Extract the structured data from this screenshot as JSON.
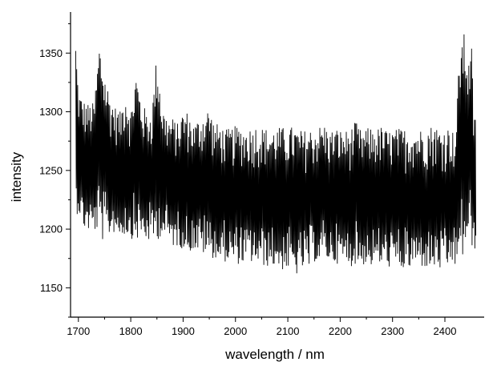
{
  "chart_data": {
    "type": "line",
    "title": "",
    "xlabel": "wavelength / nm",
    "ylabel": "intensity",
    "xlim": [
      1685,
      2475
    ],
    "ylim": [
      1125,
      1385
    ],
    "x_ticks": [
      1700,
      1800,
      1900,
      2000,
      2100,
      2200,
      2300,
      2400
    ],
    "y_ticks": [
      1150,
      1200,
      1250,
      1300,
      1350
    ],
    "grid": false,
    "legend": "none",
    "line_color": "#000000",
    "series": [
      {
        "x": [
          1695,
          1700,
          1710,
          1720,
          1730,
          1740,
          1750,
          1760,
          1770,
          1780,
          1790,
          1800,
          1810,
          1820,
          1830,
          1840,
          1850,
          1860,
          1870,
          1880,
          1890,
          1900,
          1910,
          1920,
          1930,
          1940,
          1950,
          1960,
          1970,
          1980,
          1990,
          2000,
          2010,
          2020,
          2030,
          2040,
          2050,
          2060,
          2070,
          2080,
          2090,
          2100,
          2110,
          2120,
          2130,
          2140,
          2150,
          2160,
          2170,
          2180,
          2190,
          2200,
          2210,
          2220,
          2230,
          2240,
          2250,
          2260,
          2270,
          2280,
          2290,
          2300,
          2310,
          2320,
          2330,
          2340,
          2350,
          2360,
          2370,
          2380,
          2390,
          2400,
          2410,
          2420,
          2430,
          2440,
          2445,
          2450,
          2455,
          2460
        ],
        "low": [
          1210,
          1215,
          1200,
          1198,
          1197,
          1198,
          1185,
          1195,
          1197,
          1193,
          1195,
          1192,
          1190,
          1192,
          1190,
          1188,
          1190,
          1195,
          1190,
          1185,
          1185,
          1183,
          1180,
          1182,
          1180,
          1178,
          1176,
          1175,
          1172,
          1172,
          1172,
          1170,
          1170,
          1170,
          1171,
          1170,
          1168,
          1168,
          1168,
          1167,
          1165,
          1165,
          1162,
          1160,
          1166,
          1165,
          1172,
          1172,
          1175,
          1172,
          1171,
          1170,
          1170,
          1168,
          1170,
          1168,
          1170,
          1168,
          1170,
          1168,
          1167,
          1168,
          1165,
          1165,
          1164,
          1168,
          1168,
          1167,
          1165,
          1166,
          1165,
          1160,
          1170,
          1168,
          1168,
          1185,
          1195,
          1180,
          1178,
          1188
        ],
        "high": [
          1363,
          1318,
          1310,
          1307,
          1308,
          1360,
          1335,
          1315,
          1305,
          1300,
          1320,
          1300,
          1335,
          1310,
          1300,
          1300,
          1352,
          1305,
          1295,
          1295,
          1290,
          1302,
          1300,
          1290,
          1295,
          1300,
          1305,
          1290,
          1290,
          1285,
          1286,
          1288,
          1288,
          1286,
          1287,
          1289,
          1287,
          1286,
          1285,
          1287,
          1287,
          1286,
          1288,
          1285,
          1284,
          1286,
          1286,
          1288,
          1290,
          1283,
          1287,
          1285,
          1284,
          1286,
          1292,
          1284,
          1286,
          1287,
          1286,
          1288,
          1284,
          1285,
          1286,
          1286,
          1286,
          1287,
          1285,
          1287,
          1288,
          1290,
          1286,
          1287,
          1288,
          1280,
          1370,
          1365,
          1340,
          1370,
          1300,
          1295
        ]
      }
    ]
  }
}
